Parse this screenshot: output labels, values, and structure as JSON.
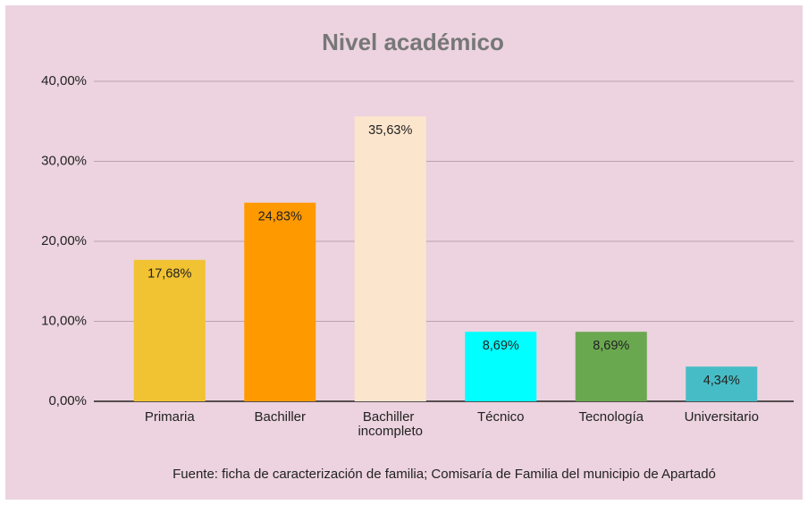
{
  "chart_data": {
    "type": "bar",
    "title": "Nivel académico",
    "categories": [
      "Primaria",
      "Bachiller",
      "Bachiller incompleto",
      "Técnico",
      "Tecnología",
      "Universitario"
    ],
    "values": [
      17.68,
      24.83,
      35.63,
      8.69,
      8.69,
      4.34
    ],
    "value_labels": [
      "17,68%",
      "24,83%",
      "35,63%",
      "8,69%",
      "8,69%",
      "4,34%"
    ],
    "colors": [
      "#f1c232",
      "#ff9900",
      "#fce5cd",
      "#00ffff",
      "#6aa84f",
      "#46bdc6"
    ],
    "ylim": [
      0,
      40
    ],
    "yticks": [
      {
        "value": 0,
        "label": "0,00%"
      },
      {
        "value": 10,
        "label": "10,00%"
      },
      {
        "value": 20,
        "label": "20,00%"
      },
      {
        "value": 30,
        "label": "30,00%"
      },
      {
        "value": 40,
        "label": "40,00%"
      }
    ],
    "grid": true,
    "source": "Fuente: ficha de caracterización de familia; Comisaría de Familia del municipio de Apartadó"
  }
}
